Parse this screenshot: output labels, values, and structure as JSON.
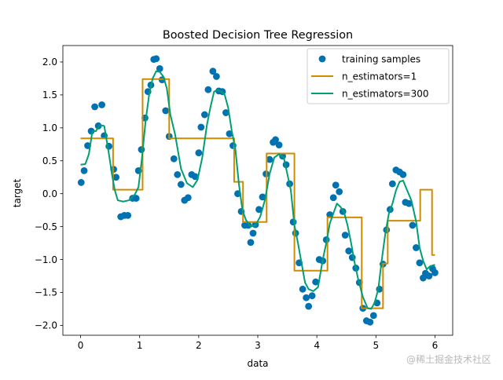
{
  "chart_data": {
    "type": "scatter",
    "title": "Boosted Decision Tree Regression",
    "xlabel": "data",
    "ylabel": "target",
    "xlim": [
      -0.3,
      6.3
    ],
    "ylim": [
      -2.15,
      2.25
    ],
    "xticks": [
      0,
      1,
      2,
      3,
      4,
      5,
      6
    ],
    "xtick_labels": [
      "0",
      "1",
      "2",
      "3",
      "4",
      "5",
      "6"
    ],
    "yticks": [
      -2.0,
      -1.5,
      -1.0,
      -0.5,
      0.0,
      0.5,
      1.0,
      1.5,
      2.0
    ],
    "ytick_labels": [
      "−2.0",
      "−1.5",
      "−1.0",
      "−0.5",
      "0.0",
      "0.5",
      "1.0",
      "1.5",
      "2.0"
    ],
    "grid": false,
    "legend_position": "top-right",
    "series": [
      {
        "name": "training samples",
        "kind": "scatter",
        "color": "#0072b2",
        "x": [
          0.01,
          0.06,
          0.12,
          0.18,
          0.24,
          0.3,
          0.36,
          0.4,
          0.48,
          0.56,
          0.6,
          0.68,
          0.74,
          0.8,
          0.88,
          0.94,
          0.98,
          1.03,
          1.09,
          1.14,
          1.19,
          1.24,
          1.28,
          1.34,
          1.38,
          1.44,
          1.5,
          1.58,
          1.64,
          1.7,
          1.76,
          1.82,
          1.88,
          1.94,
          2.0,
          2.04,
          2.1,
          2.16,
          2.24,
          2.3,
          2.34,
          2.4,
          2.46,
          2.52,
          2.58,
          2.66,
          2.72,
          2.78,
          2.84,
          2.88,
          2.92,
          2.96,
          3.02,
          3.08,
          3.14,
          3.2,
          3.26,
          3.3,
          3.36,
          3.42,
          3.48,
          3.54,
          3.6,
          3.64,
          3.7,
          3.76,
          3.82,
          3.86,
          3.92,
          3.98,
          4.04,
          4.1,
          4.16,
          4.22,
          4.28,
          4.32,
          4.38,
          4.44,
          4.48,
          4.54,
          4.6,
          4.66,
          4.72,
          4.78,
          4.84,
          4.9,
          4.96,
          5.02,
          5.06,
          5.12,
          5.18,
          5.24,
          5.28,
          5.34,
          5.4,
          5.46,
          5.5,
          5.56,
          5.62,
          5.68,
          5.74,
          5.8,
          5.84,
          5.9,
          5.96,
          6.0
        ],
        "y": [
          0.17,
          0.35,
          0.73,
          0.95,
          1.32,
          1.03,
          1.35,
          0.88,
          0.72,
          0.37,
          0.25,
          -0.35,
          -0.33,
          -0.33,
          -0.07,
          -0.07,
          0.35,
          0.67,
          1.15,
          1.55,
          1.65,
          2.04,
          2.05,
          1.9,
          1.73,
          1.26,
          0.87,
          0.53,
          0.29,
          0.14,
          -0.1,
          -0.06,
          0.29,
          0.26,
          0.62,
          1.01,
          1.2,
          1.58,
          1.86,
          1.78,
          1.56,
          1.55,
          1.23,
          0.91,
          0.73,
          0.0,
          -0.27,
          -0.48,
          -0.48,
          -0.74,
          -0.6,
          -0.47,
          -0.24,
          -0.05,
          0.3,
          0.52,
          0.78,
          0.82,
          0.74,
          0.57,
          0.44,
          0.15,
          -0.43,
          -0.6,
          -1.05,
          -1.45,
          -1.58,
          -1.71,
          -1.55,
          -1.34,
          -1.0,
          -1.02,
          -0.7,
          -0.32,
          -0.06,
          0.13,
          0.03,
          -0.27,
          -0.63,
          -0.87,
          -0.97,
          -1.13,
          -1.35,
          -1.74,
          -1.93,
          -1.95,
          -1.85,
          -1.66,
          -1.45,
          -1.07,
          -0.55,
          -0.24,
          0.15,
          0.36,
          0.33,
          0.29,
          -0.13,
          -0.15,
          -0.48,
          -0.82,
          -1.05,
          -1.28,
          -1.21,
          -1.25,
          -1.14,
          -1.2
        ]
      },
      {
        "name": "n_estimators=1",
        "kind": "step",
        "color": "#d08c00",
        "x": [
          0.0,
          0.55,
          0.55,
          1.05,
          1.05,
          1.5,
          1.5,
          2.6,
          2.6,
          2.75,
          2.75,
          3.15,
          3.15,
          3.62,
          3.62,
          4.18,
          4.18,
          4.76,
          4.76,
          5.12,
          5.12,
          5.2,
          5.2,
          5.75,
          5.75,
          5.95,
          5.95,
          6.0
        ],
        "y": [
          0.84,
          0.84,
          0.06,
          0.06,
          1.74,
          1.74,
          0.84,
          0.84,
          0.18,
          0.18,
          -0.43,
          -0.43,
          0.61,
          0.61,
          -1.17,
          -1.17,
          -0.36,
          -0.36,
          -1.74,
          -1.74,
          -1.06,
          -1.06,
          -0.41,
          -0.41,
          0.06,
          0.06,
          -0.93,
          -0.93
        ]
      },
      {
        "name": "n_estimators=300",
        "kind": "line",
        "color": "#009e73",
        "x": [
          0.0,
          0.08,
          0.14,
          0.2,
          0.26,
          0.32,
          0.4,
          0.48,
          0.53,
          0.58,
          0.63,
          0.72,
          0.82,
          0.92,
          0.98,
          1.04,
          1.1,
          1.16,
          1.22,
          1.28,
          1.34,
          1.4,
          1.46,
          1.52,
          1.6,
          1.7,
          1.8,
          1.9,
          1.98,
          2.06,
          2.14,
          2.2,
          2.26,
          2.32,
          2.38,
          2.44,
          2.5,
          2.56,
          2.62,
          2.68,
          2.74,
          2.8,
          2.88,
          2.96,
          3.04,
          3.12,
          3.2,
          3.28,
          3.36,
          3.44,
          3.5,
          3.56,
          3.62,
          3.68,
          3.74,
          3.8,
          3.86,
          3.94,
          4.02,
          4.1,
          4.16,
          4.22,
          4.28,
          4.34,
          4.4,
          4.46,
          4.52,
          4.58,
          4.64,
          4.7,
          4.78,
          4.86,
          4.92,
          4.98,
          5.04,
          5.1,
          5.16,
          5.22,
          5.28,
          5.34,
          5.4,
          5.46,
          5.52,
          5.6,
          5.68,
          5.74,
          5.8,
          5.86,
          5.92,
          6.0
        ],
        "y": [
          0.44,
          0.45,
          0.6,
          0.95,
          0.95,
          1.04,
          1.03,
          0.6,
          0.3,
          0.05,
          -0.1,
          -0.12,
          -0.1,
          -0.01,
          0.1,
          0.55,
          1.1,
          1.5,
          1.75,
          1.86,
          1.85,
          1.78,
          1.6,
          1.2,
          0.9,
          0.38,
          0.16,
          0.1,
          0.21,
          0.55,
          1.05,
          1.32,
          1.55,
          1.58,
          1.55,
          1.5,
          1.3,
          0.95,
          0.68,
          0.15,
          -0.25,
          -0.4,
          -0.5,
          -0.48,
          -0.35,
          -0.1,
          0.3,
          0.55,
          0.6,
          0.55,
          0.3,
          0.05,
          -0.48,
          -0.75,
          -1.05,
          -1.35,
          -1.45,
          -1.48,
          -1.42,
          -1.0,
          -0.75,
          -0.45,
          -0.3,
          -0.15,
          -0.2,
          -0.28,
          -0.48,
          -0.75,
          -1.05,
          -1.3,
          -1.57,
          -1.74,
          -1.75,
          -1.65,
          -1.45,
          -1.0,
          -0.6,
          -0.3,
          -0.15,
          0.05,
          0.18,
          0.2,
          0.07,
          -0.1,
          -0.42,
          -0.82,
          -1.02,
          -1.15,
          -1.1,
          -1.08
        ]
      }
    ]
  },
  "watermark": "@稀土掘金技术社区"
}
